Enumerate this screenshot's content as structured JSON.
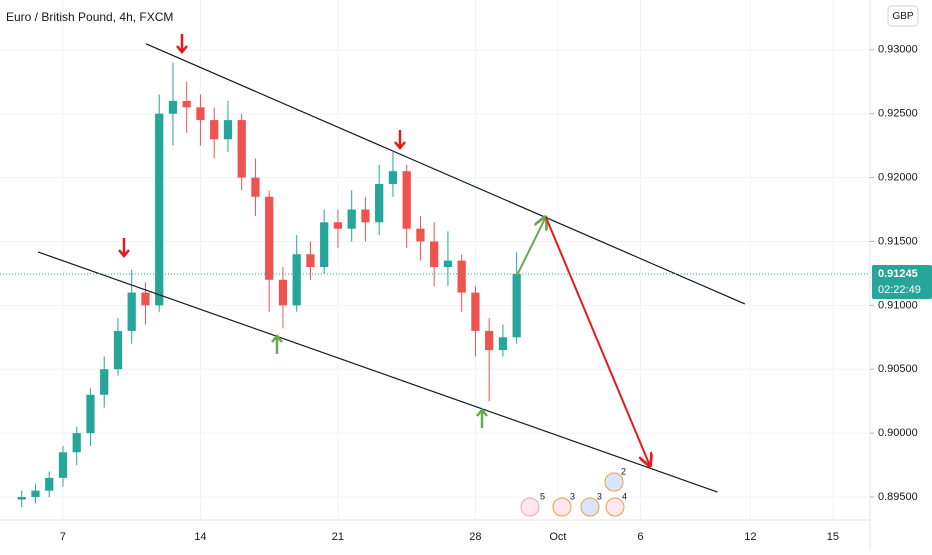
{
  "chart_data": {
    "type": "candlestick",
    "title": "Euro / British Pound, 4h, FXCM",
    "currency": "GBP",
    "x": [
      -1.5,
      -1,
      -0.5,
      0,
      0.5,
      1,
      1.5,
      2,
      2.5,
      3,
      3.5,
      4,
      4.5,
      5,
      5.5,
      6,
      6.5,
      7,
      7.5,
      8,
      8.5,
      9,
      9.5,
      10,
      10.5,
      11,
      11.5,
      12,
      12.5,
      13,
      13.5,
      14,
      14.5,
      15,
      15.5,
      16,
      16.5
    ],
    "open": [
      0.8948,
      0.895,
      0.8955,
      0.8965,
      0.8985,
      0.9,
      0.903,
      0.905,
      0.908,
      0.911,
      0.91,
      0.925,
      0.926,
      0.9255,
      0.9245,
      0.923,
      0.9245,
      0.92,
      0.9185,
      0.912,
      0.91,
      0.914,
      0.913,
      0.9165,
      0.916,
      0.9175,
      0.9165,
      0.9195,
      0.9205,
      0.916,
      0.915,
      0.913,
      0.9135,
      0.911,
      0.908,
      0.9065,
      0.9075
    ],
    "high": [
      0.8955,
      0.896,
      0.897,
      0.899,
      0.9005,
      0.9035,
      0.906,
      0.909,
      0.9128,
      0.9118,
      0.9265,
      0.929,
      0.9275,
      0.9265,
      0.9255,
      0.926,
      0.925,
      0.9215,
      0.919,
      0.913,
      0.9155,
      0.915,
      0.9175,
      0.9175,
      0.919,
      0.9185,
      0.921,
      0.922,
      0.921,
      0.917,
      0.9165,
      0.9158,
      0.914,
      0.9115,
      0.909,
      0.9085,
      0.9142
    ],
    "low": [
      0.8942,
      0.8945,
      0.895,
      0.8958,
      0.8975,
      0.899,
      0.902,
      0.9045,
      0.907,
      0.9085,
      0.9095,
      0.9225,
      0.9235,
      0.9225,
      0.9215,
      0.922,
      0.919,
      0.917,
      0.9095,
      0.9082,
      0.9095,
      0.912,
      0.9125,
      0.9145,
      0.915,
      0.915,
      0.9155,
      0.9185,
      0.9145,
      0.9135,
      0.9115,
      0.9115,
      0.9095,
      0.906,
      0.9025,
      0.906,
      0.907
    ],
    "close": [
      0.895,
      0.8955,
      0.8965,
      0.8985,
      0.9,
      0.903,
      0.905,
      0.908,
      0.911,
      0.91,
      0.925,
      0.926,
      0.9255,
      0.9245,
      0.923,
      0.9245,
      0.92,
      0.9185,
      0.912,
      0.91,
      0.914,
      0.913,
      0.9165,
      0.916,
      0.9175,
      0.9165,
      0.9195,
      0.9205,
      0.916,
      0.915,
      0.913,
      0.9135,
      0.911,
      0.908,
      0.9065,
      0.9075,
      0.91245
    ],
    "up_color": "#26a69a",
    "down_color": "#ef5350",
    "xlim": [
      -2.29,
      29.35
    ],
    "ylim": [
      0.8932,
      0.9339
    ],
    "xticks": [
      {
        "value": 0,
        "label": "7"
      },
      {
        "value": 5,
        "label": "14"
      },
      {
        "value": 10,
        "label": "21"
      },
      {
        "value": 15,
        "label": "28"
      },
      {
        "value": 18,
        "label": "Oct"
      },
      {
        "value": 21,
        "label": "6"
      },
      {
        "value": 25,
        "label": "12"
      },
      {
        "value": 28,
        "label": "15"
      }
    ],
    "yticks": [
      {
        "value": 0.93,
        "label": "0.93000"
      },
      {
        "value": 0.925,
        "label": "0.92500"
      },
      {
        "value": 0.92,
        "label": "0.92000"
      },
      {
        "value": 0.915,
        "label": "0.91500"
      },
      {
        "value": 0.91,
        "label": "0.91000"
      },
      {
        "value": 0.905,
        "label": "0.90500"
      },
      {
        "value": 0.9,
        "label": "0.90000"
      },
      {
        "value": 0.895,
        "label": "0.89500"
      }
    ],
    "last_price": {
      "value": 0.91245,
      "label": "0.91245",
      "countdown": "02:22:49",
      "color": "#26a69a"
    },
    "trend_lines": [
      {
        "color": "#131722",
        "x": [
          3.02,
          24.8
        ],
        "y": [
          0.93047,
          0.91011
        ]
      },
      {
        "color": "#131722",
        "x": [
          -0.91,
          23.8
        ],
        "y": [
          0.91418,
          0.89539
        ]
      },
      {
        "color": "#6aa84f",
        "x": [
          16.5,
          17.56
        ],
        "y": [
          0.9123,
          0.91692
        ]
      },
      {
        "color": "#e31b1b",
        "x": [
          17.56,
          21.35
        ],
        "y": [
          0.91692,
          0.89743
        ]
      }
    ],
    "events": [
      "5",
      "3",
      "3",
      "4",
      "2"
    ]
  }
}
